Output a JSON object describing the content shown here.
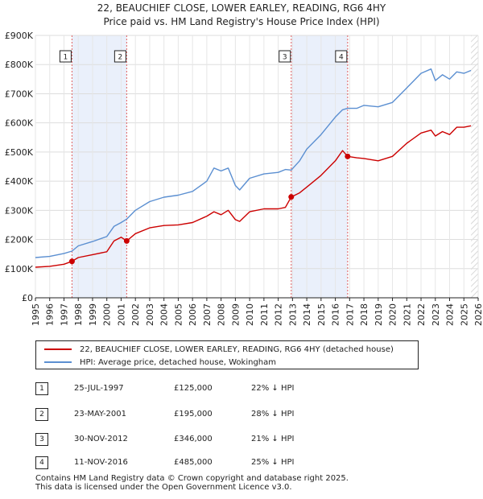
{
  "title_line1": "22, BEAUCHIEF CLOSE, LOWER EARLEY, READING, RG6 4HY",
  "title_line2": "Price paid vs. HM Land Registry's House Price Index (HPI)",
  "legend": {
    "property_label": "22, BEAUCHIEF CLOSE, LOWER EARLEY, READING, RG6 4HY (detached house)",
    "hpi_label": "HPI: Average price, detached house, Wokingham"
  },
  "sales": [
    {
      "num": "1",
      "date": "25-JUL-1997",
      "price": "£125,000",
      "hpi": "22% ↓ HPI"
    },
    {
      "num": "2",
      "date": "23-MAY-2001",
      "price": "£195,000",
      "hpi": "28% ↓ HPI"
    },
    {
      "num": "3",
      "date": "30-NOV-2012",
      "price": "£346,000",
      "hpi": "21% ↓ HPI"
    },
    {
      "num": "4",
      "date": "11-NOV-2016",
      "price": "£485,000",
      "hpi": "25% ↓ HPI"
    }
  ],
  "footer_line1": "Contains HM Land Registry data © Crown copyright and database right 2025.",
  "footer_line2": "This data is licensed under the Open Government Licence v3.0.",
  "colors": {
    "property": "#cc0000",
    "hpi": "#5b8fd1",
    "shade": "#eaf0fb",
    "vline": "#e06060",
    "hatch": "#cccccc"
  },
  "chart_data": {
    "type": "line",
    "xlim": [
      1995,
      2026
    ],
    "ylim": [
      0,
      900000
    ],
    "y_ticks": [
      0,
      100000,
      200000,
      300000,
      400000,
      500000,
      600000,
      700000,
      800000,
      900000
    ],
    "y_tick_labels": [
      "£0",
      "£100K",
      "£200K",
      "£300K",
      "£400K",
      "£500K",
      "£600K",
      "£700K",
      "£800K",
      "£900K"
    ],
    "x_ticks": [
      1995,
      1996,
      1997,
      1998,
      1999,
      2000,
      2001,
      2002,
      2003,
      2004,
      2005,
      2006,
      2007,
      2008,
      2009,
      2010,
      2011,
      2012,
      2013,
      2014,
      2015,
      2016,
      2017,
      2018,
      2019,
      2020,
      2021,
      2022,
      2023,
      2024,
      2025,
      2026
    ],
    "shaded_ranges": [
      [
        1997.56,
        2001.39
      ],
      [
        2012.91,
        2016.86
      ]
    ],
    "data_end": 2025.5,
    "sale_markers": [
      {
        "label": "1",
        "x": 1997.56,
        "y": 125000
      },
      {
        "label": "2",
        "x": 2001.39,
        "y": 195000
      },
      {
        "label": "3",
        "x": 2012.91,
        "y": 346000
      },
      {
        "label": "4",
        "x": 2016.86,
        "y": 485000
      }
    ],
    "series": [
      {
        "name": "22, BEAUCHIEF CLOSE, LOWER EARLEY, READING, RG6 4HY (detached house)",
        "x": [
          1995.0,
          1996.0,
          1997.0,
          1997.56,
          1998.0,
          1999.0,
          2000.0,
          2000.5,
          2001.0,
          2001.39,
          2002.0,
          2003.0,
          2004.0,
          2005.0,
          2006.0,
          2007.0,
          2007.5,
          2008.0,
          2008.5,
          2009.0,
          2009.3,
          2010.0,
          2011.0,
          2012.0,
          2012.5,
          2012.91,
          2013.5,
          2014.0,
          2015.0,
          2016.0,
          2016.5,
          2016.86,
          2017.5,
          2018.0,
          2019.0,
          2020.0,
          2021.0,
          2022.0,
          2022.7,
          2023.0,
          2023.5,
          2024.0,
          2024.5,
          2025.0,
          2025.5
        ],
        "y": [
          105000,
          108000,
          115000,
          125000,
          138000,
          148000,
          158000,
          195000,
          208000,
          195000,
          220000,
          240000,
          248000,
          250000,
          258000,
          280000,
          295000,
          285000,
          300000,
          268000,
          262000,
          295000,
          305000,
          305000,
          310000,
          346000,
          360000,
          380000,
          420000,
          470000,
          505000,
          485000,
          480000,
          478000,
          470000,
          485000,
          530000,
          565000,
          575000,
          555000,
          570000,
          560000,
          585000,
          585000,
          590000
        ]
      },
      {
        "name": "HPI: Average price, detached house, Wokingham",
        "x": [
          1995.0,
          1996.0,
          1997.0,
          1997.56,
          1998.0,
          1999.0,
          2000.0,
          2000.5,
          2001.0,
          2001.39,
          2002.0,
          2003.0,
          2004.0,
          2005.0,
          2006.0,
          2007.0,
          2007.5,
          2008.0,
          2008.5,
          2009.0,
          2009.3,
          2010.0,
          2011.0,
          2012.0,
          2012.5,
          2012.91,
          2013.5,
          2014.0,
          2015.0,
          2016.0,
          2016.5,
          2016.86,
          2017.5,
          2018.0,
          2019.0,
          2020.0,
          2021.0,
          2022.0,
          2022.7,
          2023.0,
          2023.5,
          2024.0,
          2024.5,
          2025.0,
          2025.5
        ],
        "y": [
          138000,
          142000,
          152000,
          160000,
          178000,
          193000,
          210000,
          245000,
          258000,
          270000,
          300000,
          330000,
          345000,
          352000,
          365000,
          400000,
          445000,
          435000,
          445000,
          385000,
          370000,
          410000,
          425000,
          430000,
          440000,
          438000,
          470000,
          510000,
          560000,
          620000,
          645000,
          650000,
          650000,
          660000,
          655000,
          670000,
          720000,
          770000,
          785000,
          745000,
          765000,
          750000,
          775000,
          770000,
          780000
        ]
      }
    ]
  }
}
